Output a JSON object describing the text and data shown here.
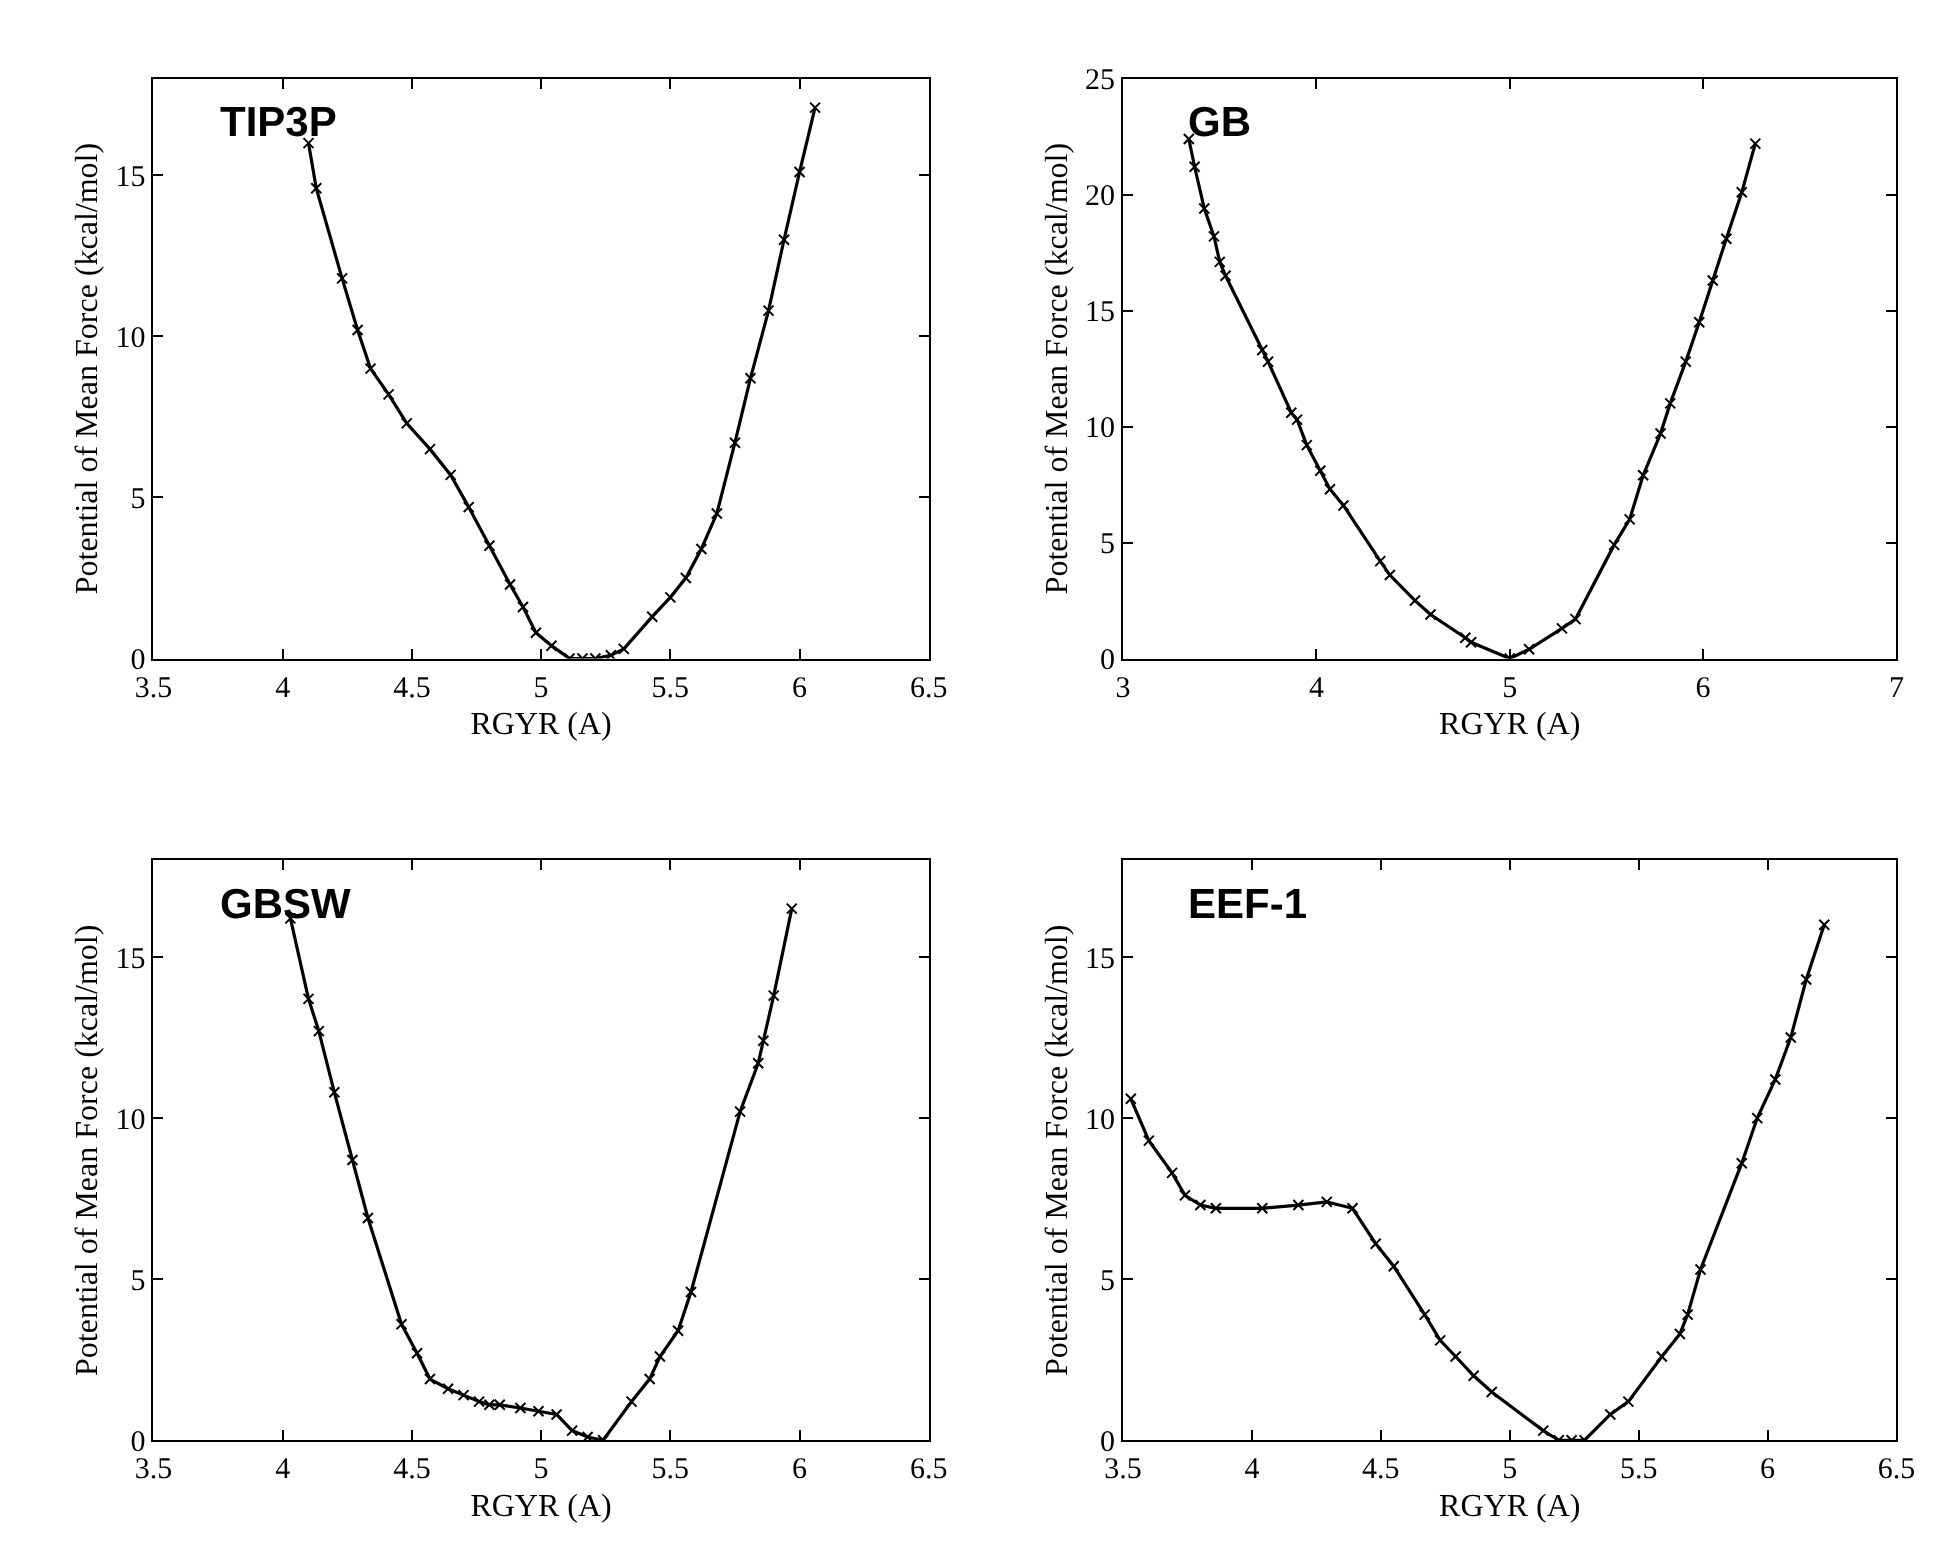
{
  "chart_data": [
    {
      "type": "line",
      "title": "TIP3P",
      "xlabel": "RGYR (A)",
      "ylabel": "Potential of Mean Force (kcal/mol)",
      "xlim": [
        3.5,
        6.5
      ],
      "xticks": [
        3.5,
        4,
        4.5,
        5,
        5.5,
        6,
        6.5
      ],
      "ylim": [
        0,
        18
      ],
      "yticks": [
        0,
        5,
        10,
        15
      ],
      "marker": "cross",
      "line_style": "solid",
      "series": [
        {
          "color": "#000000",
          "x": [
            4.1,
            4.13,
            4.23,
            4.29,
            4.34,
            4.41,
            4.48,
            4.57,
            4.65,
            4.72,
            4.8,
            4.88,
            4.93,
            4.98,
            5.04,
            5.11,
            5.16,
            5.21,
            5.27,
            5.32,
            5.43,
            5.5,
            5.56,
            5.62,
            5.68,
            5.75,
            5.81,
            5.88,
            5.94,
            6.0,
            6.06
          ],
          "values": [
            16.0,
            14.6,
            11.8,
            10.2,
            9.0,
            8.2,
            7.3,
            6.5,
            5.7,
            4.7,
            3.5,
            2.3,
            1.6,
            0.8,
            0.4,
            0.0,
            0.0,
            0.0,
            0.1,
            0.3,
            1.3,
            1.9,
            2.5,
            3.4,
            4.5,
            6.7,
            8.7,
            10.8,
            13.0,
            15.1,
            17.1
          ]
        }
      ]
    },
    {
      "type": "line",
      "title": "GB",
      "xlabel": "RGYR (A)",
      "ylabel": "Potential of Mean Force (kcal/mol)",
      "xlim": [
        3,
        7
      ],
      "xticks": [
        3,
        4,
        5,
        6,
        7
      ],
      "ylim": [
        0,
        25
      ],
      "yticks": [
        0,
        5,
        10,
        15,
        20,
        25
      ],
      "marker": "cross",
      "line_style": "solid",
      "series": [
        {
          "color": "#000000",
          "x": [
            3.34,
            3.37,
            3.42,
            3.47,
            3.5,
            3.53,
            3.72,
            3.75,
            3.87,
            3.9,
            3.95,
            4.02,
            4.07,
            4.14,
            4.33,
            4.38,
            4.51,
            4.59,
            4.77,
            4.8,
            5.0,
            5.1,
            5.27,
            5.34,
            5.54,
            5.62,
            5.69,
            5.78,
            5.83,
            5.91,
            5.98,
            6.05,
            6.12,
            6.2,
            6.27
          ],
          "values": [
            22.4,
            21.2,
            19.4,
            18.2,
            17.1,
            16.5,
            13.3,
            12.8,
            10.6,
            10.3,
            9.2,
            8.1,
            7.3,
            6.6,
            4.2,
            3.6,
            2.5,
            1.9,
            0.9,
            0.7,
            0.0,
            0.4,
            1.3,
            1.7,
            4.9,
            6.0,
            7.9,
            9.7,
            11.0,
            12.8,
            14.5,
            16.3,
            18.1,
            20.1,
            22.2
          ]
        }
      ]
    },
    {
      "type": "line",
      "title": "GBSW",
      "xlabel": "RGYR (A)",
      "ylabel": "Potential of Mean Force (kcal/mol)",
      "xlim": [
        3.5,
        6.5
      ],
      "xticks": [
        3.5,
        4,
        4.5,
        5,
        5.5,
        6,
        6.5
      ],
      "ylim": [
        0,
        18
      ],
      "yticks": [
        0,
        5,
        10,
        15
      ],
      "marker": "cross",
      "line_style": "solid",
      "series": [
        {
          "color": "#000000",
          "x": [
            4.03,
            4.1,
            4.14,
            4.2,
            4.27,
            4.33,
            4.46,
            4.52,
            4.57,
            4.64,
            4.7,
            4.76,
            4.8,
            4.84,
            4.92,
            4.99,
            5.06,
            5.12,
            5.18,
            5.24,
            5.35,
            5.42,
            5.46,
            5.53,
            5.58,
            5.77,
            5.84,
            5.86,
            5.9,
            5.97
          ],
          "values": [
            16.2,
            13.7,
            12.7,
            10.8,
            8.7,
            6.9,
            3.6,
            2.7,
            1.9,
            1.6,
            1.4,
            1.2,
            1.1,
            1.1,
            1.0,
            0.9,
            0.8,
            0.3,
            0.1,
            0.0,
            1.2,
            1.9,
            2.6,
            3.4,
            4.6,
            10.2,
            11.7,
            12.4,
            13.8,
            16.5
          ]
        }
      ]
    },
    {
      "type": "line",
      "title": "EEF-1",
      "xlabel": "RGYR (A)",
      "ylabel": "Potential of Mean Force (kcal/mol)",
      "xlim": [
        3.5,
        6.5
      ],
      "xticks": [
        3.5,
        4,
        4.5,
        5,
        5.5,
        6,
        6.5
      ],
      "ylim": [
        0,
        18
      ],
      "yticks": [
        0,
        5,
        10,
        15
      ],
      "marker": "cross",
      "line_style": "solid",
      "series": [
        {
          "color": "#000000",
          "x": [
            3.53,
            3.6,
            3.69,
            3.74,
            3.8,
            3.86,
            4.04,
            4.18,
            4.29,
            4.39,
            4.48,
            4.55,
            4.67,
            4.73,
            4.79,
            4.86,
            4.93,
            5.13,
            5.19,
            5.24,
            5.29,
            5.39,
            5.46,
            5.59,
            5.66,
            5.69,
            5.74,
            5.9,
            5.96,
            6.03,
            6.09,
            6.15,
            6.22
          ],
          "values": [
            10.6,
            9.3,
            8.3,
            7.6,
            7.3,
            7.2,
            7.2,
            7.3,
            7.4,
            7.2,
            6.1,
            5.4,
            3.9,
            3.1,
            2.6,
            2.0,
            1.5,
            0.3,
            0.0,
            0.0,
            0.0,
            0.8,
            1.2,
            2.6,
            3.3,
            3.9,
            5.3,
            8.6,
            10.0,
            11.2,
            12.5,
            14.3,
            16.0
          ]
        }
      ]
    }
  ]
}
